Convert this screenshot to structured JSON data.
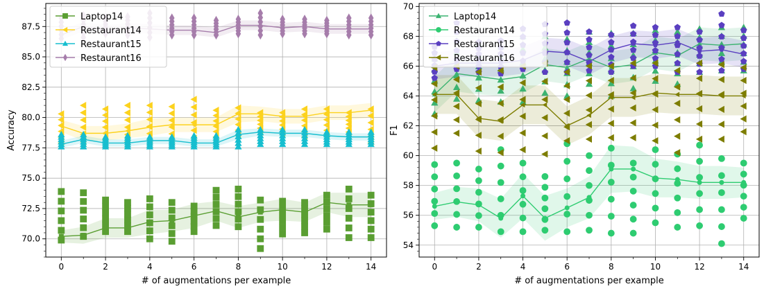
{
  "chart_data": [
    {
      "type": "line",
      "xlabel": "# of augmentations per example",
      "ylabel": "Accuracy",
      "xlim": [
        -0.7,
        14.7
      ],
      "ylim": [
        68.5,
        89.4
      ],
      "xticks": [
        0,
        2,
        4,
        6,
        8,
        10,
        12,
        14
      ],
      "yticks": [
        70.0,
        72.5,
        75.0,
        77.5,
        80.0,
        82.5,
        85.0,
        87.5
      ],
      "ytick_labels": [
        "70.0",
        "72.5",
        "75.0",
        "77.5",
        "80.0",
        "82.5",
        "85.0",
        "87.5"
      ],
      "grid": true,
      "legend_position": "top-left",
      "x": [
        0,
        1,
        2,
        3,
        4,
        5,
        6,
        7,
        8,
        9,
        10,
        11,
        12,
        13,
        14
      ],
      "series": [
        {
          "name": "Laptop14",
          "color": "#5a9e32",
          "marker": "square",
          "values": [
            70.2,
            70.3,
            70.9,
            70.9,
            71.4,
            71.5,
            71.9,
            72.3,
            71.8,
            72.2,
            72.4,
            72.2,
            73.0,
            72.8,
            72.8
          ],
          "band": [
            0.5,
            0.7,
            0.8,
            0.8,
            1.0,
            0.9,
            1.0,
            0.8,
            0.9,
            0.8,
            0.9,
            0.8,
            0.8,
            1.0,
            1.0
          ],
          "spread": [
            [
              69.9,
              73.9
            ],
            [
              70.2,
              73.8
            ],
            [
              70.6,
              73.2
            ],
            [
              70.6,
              73.0
            ],
            [
              70.0,
              73.3
            ],
            [
              69.8,
              73.0
            ],
            [
              70.6,
              72.7
            ],
            [
              71.1,
              74.0
            ],
            [
              71.0,
              74.1
            ],
            [
              69.2,
              73.2
            ],
            [
              70.4,
              73.1
            ],
            [
              70.5,
              73.0
            ],
            [
              70.8,
              73.6
            ],
            [
              70.1,
              74.1
            ],
            [
              70.1,
              73.6
            ]
          ]
        },
        {
          "name": "Restaurant14",
          "color": "#fcd21e",
          "marker": "tri-left",
          "values": [
            79.3,
            78.7,
            78.7,
            78.9,
            79.2,
            79.4,
            79.4,
            79.4,
            80.3,
            80.3,
            80.1,
            80.1,
            80.4,
            80.4,
            80.6
          ],
          "band": [
            0.5,
            0.6,
            0.6,
            0.6,
            0.7,
            0.6,
            0.6,
            0.6,
            0.7,
            0.6,
            0.6,
            0.6,
            0.6,
            0.6,
            0.6
          ],
          "spread": [
            [
              77.9,
              80.3
            ],
            [
              78.0,
              81.0
            ],
            [
              78.2,
              80.7
            ],
            [
              78.0,
              81.0
            ],
            [
              78.1,
              81.0
            ],
            [
              78.1,
              80.9
            ],
            [
              78.3,
              81.5
            ],
            [
              78.4,
              80.6
            ],
            [
              78.5,
              80.8
            ],
            [
              78.8,
              80.4
            ],
            [
              78.7,
              80.4
            ],
            [
              78.4,
              80.7
            ],
            [
              78.5,
              80.7
            ],
            [
              78.8,
              80.4
            ],
            [
              77.9,
              80.7
            ]
          ]
        },
        {
          "name": "Restaurant15",
          "color": "#17becf",
          "marker": "tri-up",
          "values": [
            77.8,
            78.2,
            77.9,
            77.9,
            78.1,
            78.1,
            77.9,
            77.9,
            78.6,
            78.8,
            78.7,
            78.7,
            78.5,
            78.4,
            78.4
          ],
          "band": [
            0.3,
            0.3,
            0.3,
            0.3,
            0.3,
            0.3,
            0.3,
            0.3,
            0.4,
            0.3,
            0.3,
            0.3,
            0.3,
            0.3,
            0.3
          ],
          "spread": [
            [
              77.6,
              78.6
            ],
            [
              77.6,
              78.6
            ],
            [
              77.6,
              78.4
            ],
            [
              77.6,
              78.5
            ],
            [
              77.6,
              78.4
            ],
            [
              77.6,
              78.4
            ],
            [
              77.6,
              78.5
            ],
            [
              77.6,
              78.5
            ],
            [
              77.6,
              79.0
            ],
            [
              77.8,
              79.0
            ],
            [
              77.8,
              79.0
            ],
            [
              77.8,
              79.0
            ],
            [
              77.8,
              78.8
            ],
            [
              77.8,
              78.8
            ],
            [
              77.8,
              78.8
            ]
          ]
        },
        {
          "name": "Restaurant16",
          "color": "#a67dab",
          "marker": "diamond",
          "values": [
            86.8,
            87.5,
            87.2,
            87.4,
            87.3,
            87.2,
            87.2,
            87.0,
            87.6,
            87.6,
            87.4,
            87.5,
            87.3,
            87.3,
            87.3
          ],
          "band": [
            0.4,
            0.4,
            0.4,
            0.4,
            0.4,
            0.4,
            0.4,
            0.4,
            0.4,
            0.4,
            0.4,
            0.4,
            0.4,
            0.4,
            0.4
          ],
          "spread": [
            [
              86.5,
              88.2
            ],
            [
              86.6,
              88.4
            ],
            [
              86.9,
              88.2
            ],
            [
              86.8,
              88.3
            ],
            [
              86.6,
              88.6
            ],
            [
              86.8,
              88.2
            ],
            [
              86.8,
              88.2
            ],
            [
              86.8,
              88.0
            ],
            [
              86.9,
              88.1
            ],
            [
              86.8,
              88.6
            ],
            [
              86.9,
              88.1
            ],
            [
              86.9,
              88.1
            ],
            [
              86.9,
              88.0
            ],
            [
              86.8,
              88.2
            ],
            [
              86.8,
              88.2
            ]
          ]
        }
      ]
    },
    {
      "type": "line",
      "xlabel": "# of augmentations per example",
      "ylabel": "F1",
      "xlim": [
        -0.7,
        14.7
      ],
      "ylim": [
        53.2,
        70.2
      ],
      "xticks": [
        0,
        2,
        4,
        6,
        8,
        10,
        12,
        14
      ],
      "yticks": [
        54,
        56,
        58,
        60,
        62,
        64,
        66,
        68,
        70
      ],
      "ytick_labels": [
        "54",
        "56",
        "58",
        "60",
        "62",
        "64",
        "66",
        "68",
        "70"
      ],
      "grid": true,
      "legend_position": "top-left",
      "x": [
        0,
        1,
        2,
        3,
        4,
        5,
        6,
        7,
        8,
        9,
        10,
        11,
        12,
        13,
        14
      ],
      "series": [
        {
          "name": "Laptop14",
          "color": "#3cb371",
          "marker": "tri-up",
          "values": [
            64.1,
            65.5,
            65.3,
            65.1,
            65.3,
            66.1,
            65.9,
            66.5,
            65.9,
            66.1,
            66.9,
            66.7,
            67.5,
            67.4,
            67.5
          ],
          "band": [
            1.2,
            1.2,
            1.2,
            1.1,
            1.1,
            1.1,
            1.1,
            1.1,
            1.1,
            1.1,
            1.1,
            1.1,
            1.1,
            1.1,
            1.1
          ],
          "spread": [
            [
              62.8,
              66.5
            ],
            [
              63.8,
              67.7
            ],
            [
              63.7,
              67.5
            ],
            [
              63.6,
              67.3
            ],
            [
              63.6,
              68.0
            ],
            [
              64.2,
              68.0
            ],
            [
              64.0,
              67.8
            ],
            [
              64.8,
              68.3
            ],
            [
              64.0,
              68.2
            ],
            [
              64.5,
              68.2
            ],
            [
              65.0,
              68.4
            ],
            [
              64.8,
              68.3
            ],
            [
              65.6,
              68.5
            ],
            [
              65.7,
              68.6
            ],
            [
              65.7,
              68.6
            ]
          ]
        },
        {
          "name": "Restaurant14",
          "color": "#2ecc71",
          "marker": "circle",
          "values": [
            56.6,
            56.9,
            56.7,
            55.8,
            57.3,
            55.8,
            56.5,
            57.2,
            59.1,
            59.1,
            58.5,
            58.4,
            58.2,
            58.2,
            58.2
          ],
          "band": [
            0.9,
            1.0,
            1.1,
            1.3,
            1.5,
            1.5,
            1.3,
            1.4,
            1.6,
            1.5,
            1.3,
            1.2,
            1.1,
            1.1,
            1.0
          ],
          "spread": [
            [
              55.3,
              59.4
            ],
            [
              55.2,
              59.5
            ],
            [
              55.2,
              59.1
            ],
            [
              54.9,
              60.4
            ],
            [
              54.9,
              59.5
            ],
            [
              55.0,
              58.6
            ],
            [
              54.9,
              60.8
            ],
            [
              55.0,
              60.0
            ],
            [
              54.8,
              60.5
            ],
            [
              54.8,
              59.5
            ],
            [
              55.5,
              60.4
            ],
            [
              55.2,
              60.1
            ],
            [
              55.3,
              60.7
            ],
            [
              54.1,
              59.8
            ],
            [
              55.8,
              59.5
            ]
          ]
        },
        {
          "name": "Restaurant15",
          "color": "#5a3fc0",
          "marker": "pentagon",
          "values": [
            66.0,
            66.2,
            66.2,
            66.2,
            66.4,
            67.0,
            66.9,
            66.3,
            67.1,
            67.5,
            67.4,
            67.6,
            67.0,
            67.1,
            66.8
          ],
          "band": [
            0.9,
            0.9,
            0.9,
            0.9,
            0.9,
            0.9,
            0.9,
            0.9,
            0.9,
            0.9,
            0.9,
            0.9,
            0.9,
            0.9,
            0.9
          ],
          "spread": [
            [
              65.2,
              67.3
            ],
            [
              65.8,
              68.9
            ],
            [
              65.6,
              67.6
            ],
            [
              65.5,
              67.7
            ],
            [
              65.8,
              68.5
            ],
            [
              65.6,
              68.8
            ],
            [
              65.6,
              68.9
            ],
            [
              65.7,
              68.3
            ],
            [
              65.6,
              68.1
            ],
            [
              66.0,
              68.7
            ],
            [
              66.0,
              68.6
            ],
            [
              65.6,
              68.6
            ],
            [
              65.6,
              68.3
            ],
            [
              65.7,
              69.5
            ],
            [
              65.8,
              68.4
            ]
          ]
        },
        {
          "name": "Restaurant16",
          "color": "#7d7d00",
          "marker": "tri-left",
          "values": [
            64.1,
            64.1,
            62.5,
            62.3,
            63.4,
            63.4,
            62.0,
            62.7,
            63.9,
            63.9,
            64.2,
            64.1,
            64.1,
            64.0,
            64.0
          ],
          "band": [
            1.3,
            1.3,
            1.3,
            1.3,
            1.3,
            1.3,
            1.3,
            1.3,
            1.3,
            1.3,
            1.3,
            1.3,
            1.3,
            1.3,
            1.3
          ],
          "spread": [
            [
              60.5,
              65.9
            ],
            [
              61.5,
              66.0
            ],
            [
              60.3,
              65.6
            ],
            [
              60.2,
              65.7
            ],
            [
              60.4,
              66.0
            ],
            [
              60.1,
              66.2
            ],
            [
              61.0,
              65.6
            ],
            [
              61.1,
              66.0
            ],
            [
              61.2,
              66.0
            ],
            [
              61.2,
              66.2
            ],
            [
              61.0,
              66.2
            ],
            [
              60.2,
              65.7
            ],
            [
              61.1,
              66.2
            ],
            [
              61.1,
              66.1
            ],
            [
              61.6,
              65.9
            ]
          ]
        }
      ]
    }
  ]
}
